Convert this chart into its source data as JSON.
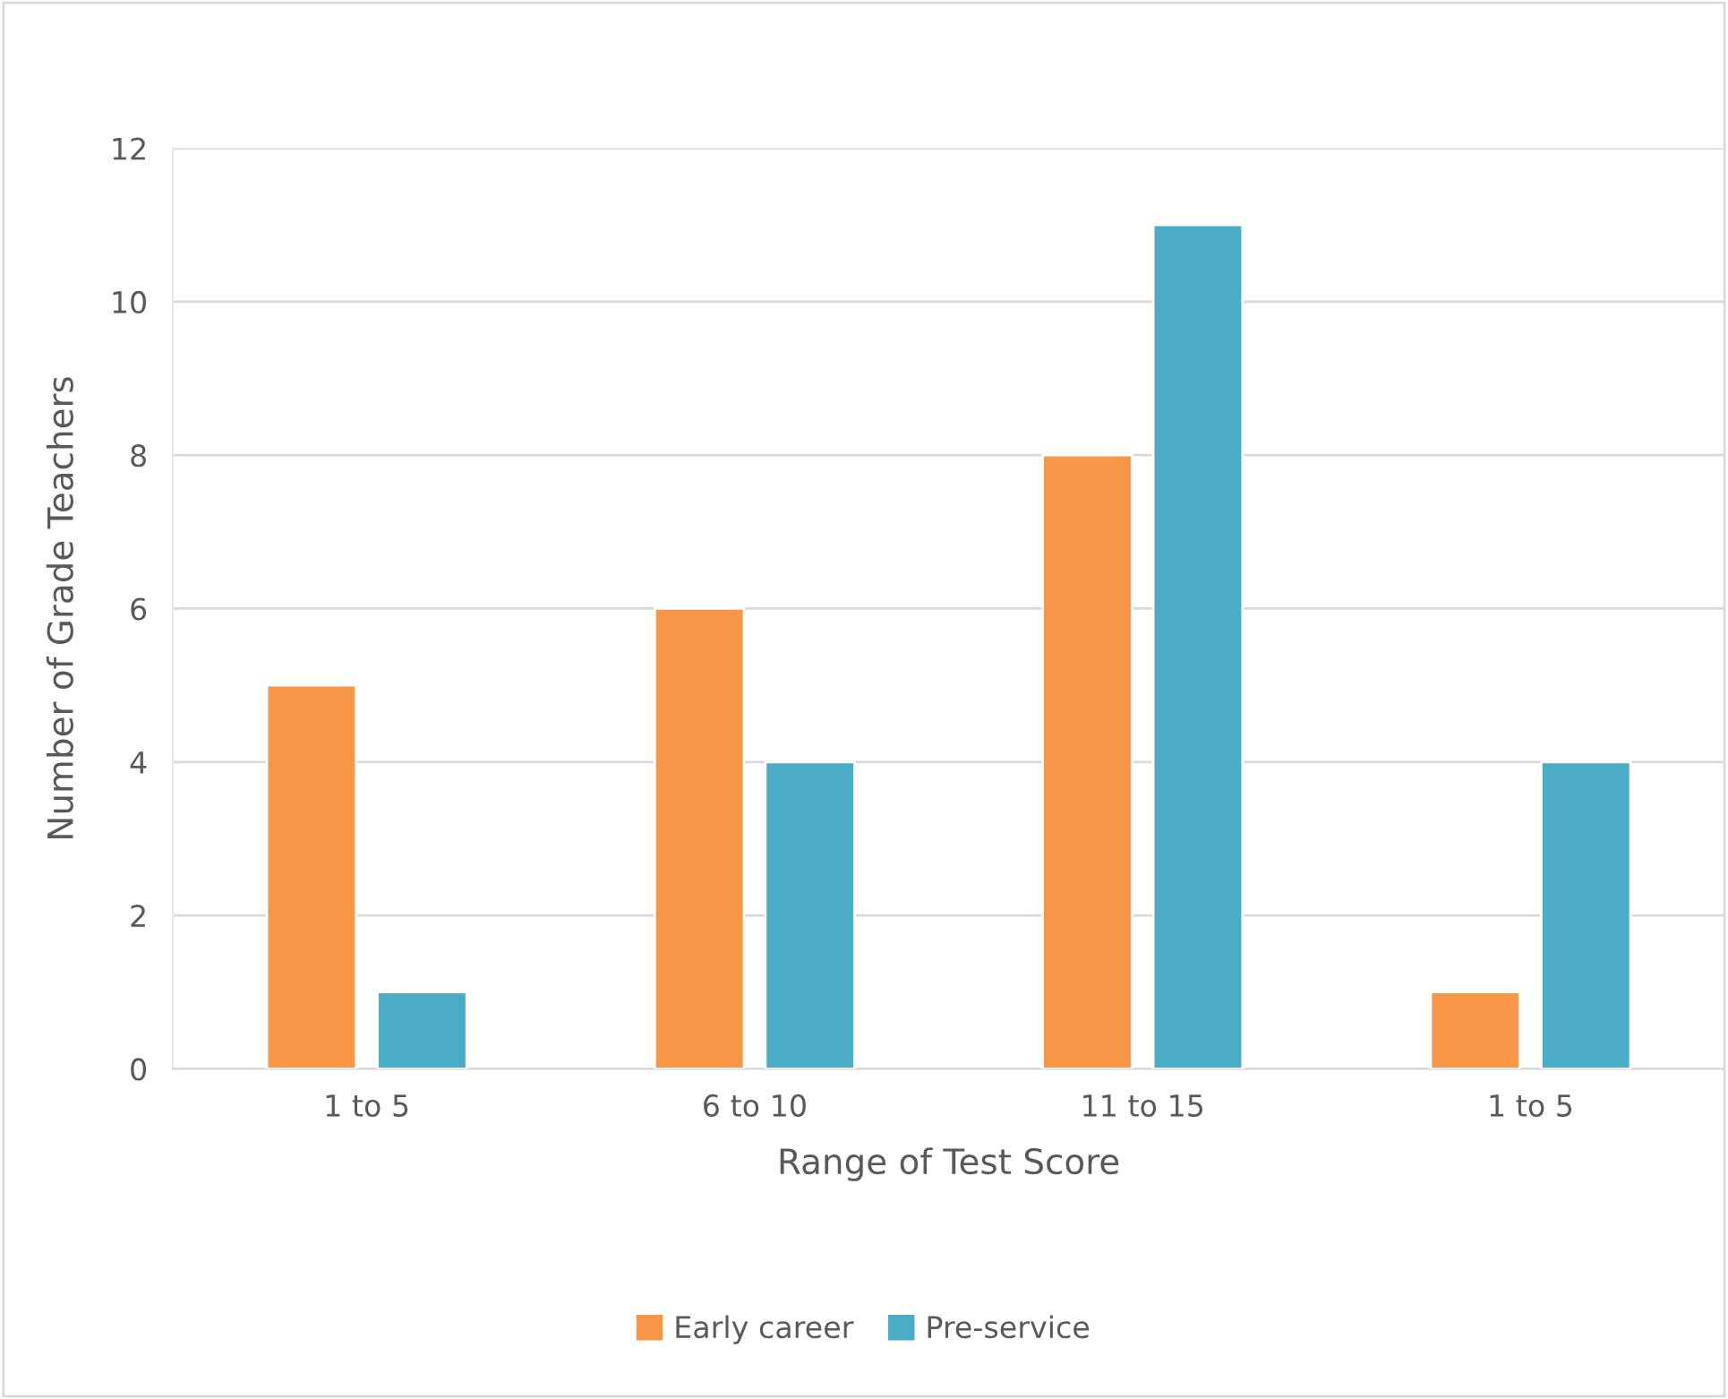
{
  "chart_data": {
    "type": "bar",
    "xlabel": "Range of Test Score",
    "ylabel": "Number of Grade Teachers",
    "categories": [
      "1 to 5",
      "6 to 10",
      "11 to 15",
      "1 to 5"
    ],
    "series": [
      {
        "name": "Early career",
        "color": "#f79646",
        "values": [
          5,
          6,
          8,
          1
        ]
      },
      {
        "name": "Pre-service",
        "color": "#4bacc6",
        "values": [
          1,
          4,
          11,
          4
        ]
      }
    ],
    "ylim": [
      0,
      12
    ],
    "yticks": [
      0,
      2,
      4,
      6,
      8,
      10,
      12
    ],
    "grid": "y",
    "legend": "bottom"
  }
}
